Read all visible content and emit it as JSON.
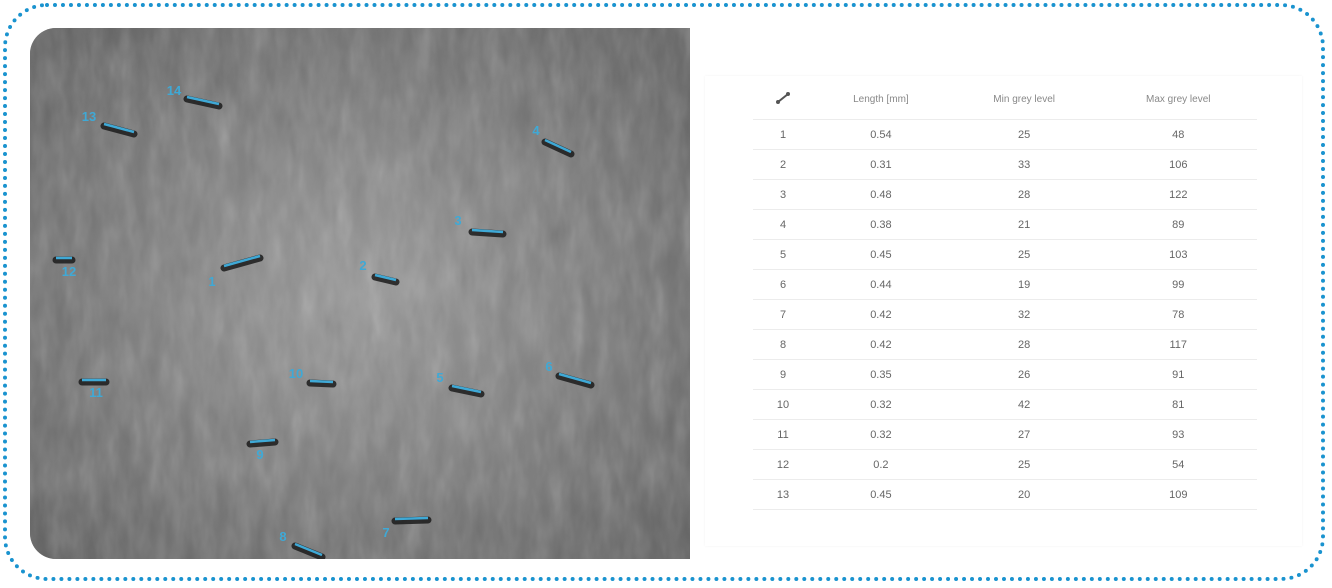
{
  "colors": {
    "accent": "#1a93cf",
    "marker": "#3fa9d6"
  },
  "image": {
    "markers": [
      "1",
      "2",
      "3",
      "4",
      "5",
      "6",
      "7",
      "8",
      "9",
      "10",
      "11",
      "12",
      "13",
      "14"
    ]
  },
  "table": {
    "header_icon": "measure-line-icon",
    "columns": [
      "Length [mm]",
      "Min grey level",
      "Max grey level"
    ],
    "rows": [
      [
        "1",
        "0.54",
        "25",
        "48"
      ],
      [
        "2",
        "0.31",
        "33",
        "106"
      ],
      [
        "3",
        "0.48",
        "28",
        "122"
      ],
      [
        "4",
        "0.38",
        "21",
        "89"
      ],
      [
        "5",
        "0.45",
        "25",
        "103"
      ],
      [
        "6",
        "0.44",
        "19",
        "99"
      ],
      [
        "7",
        "0.42",
        "32",
        "78"
      ],
      [
        "8",
        "0.42",
        "28",
        "117"
      ],
      [
        "9",
        "0.35",
        "26",
        "91"
      ],
      [
        "10",
        "0.32",
        "42",
        "81"
      ],
      [
        "11",
        "0.32",
        "27",
        "93"
      ],
      [
        "12",
        "0.2",
        "25",
        "54"
      ],
      [
        "13",
        "0.45",
        "20",
        "109"
      ]
    ]
  }
}
